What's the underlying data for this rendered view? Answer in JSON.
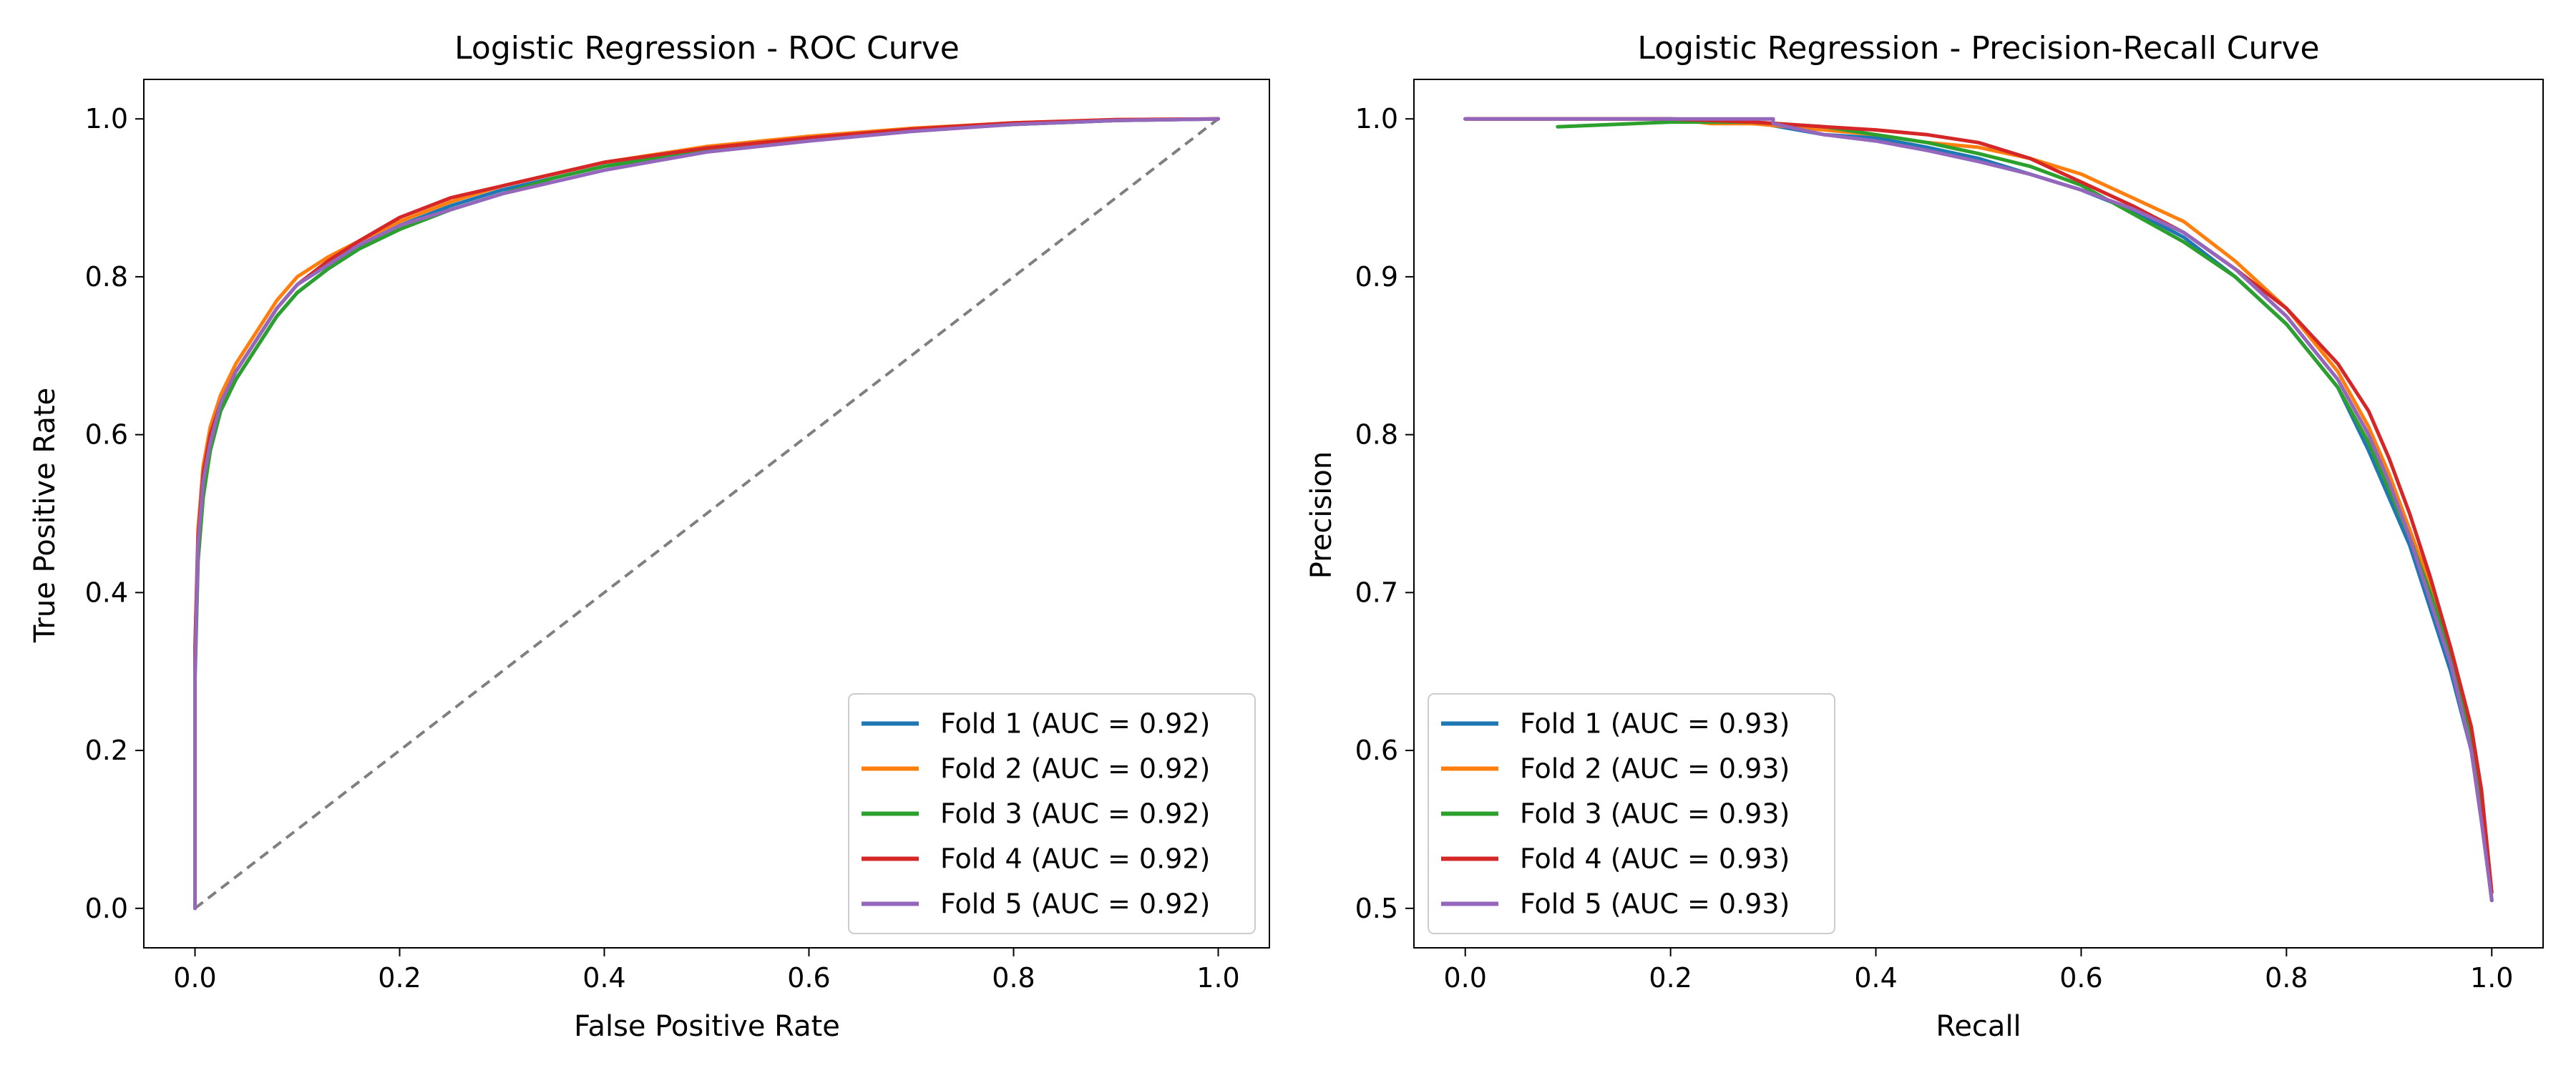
{
  "chart_data": [
    {
      "type": "line",
      "title": "Logistic Regression - ROC Curve",
      "xlabel": "False Positive Rate",
      "ylabel": "True Positive Rate",
      "xlim": [
        -0.05,
        1.05
      ],
      "ylim": [
        -0.05,
        1.05
      ],
      "xticks": [
        0.0,
        0.2,
        0.4,
        0.6,
        0.8,
        1.0
      ],
      "yticks": [
        0.0,
        0.2,
        0.4,
        0.6,
        0.8,
        1.0
      ],
      "xtick_labels": [
        "0.0",
        "0.2",
        "0.4",
        "0.6",
        "0.8",
        "1.0"
      ],
      "ytick_labels": [
        "0.0",
        "0.2",
        "0.4",
        "0.6",
        "0.8",
        "1.0"
      ],
      "legend_position": "lower-right",
      "grid": false,
      "reference_line": {
        "x": [
          0,
          1
        ],
        "y": [
          0,
          1
        ],
        "style": "dashed",
        "color": "#7f7f7f"
      },
      "series": [
        {
          "name": "Fold 1 (AUC = 0.92)",
          "color": "#1f77b4",
          "x": [
            0,
            0,
            0.003,
            0.008,
            0.015,
            0.025,
            0.04,
            0.06,
            0.08,
            0.1,
            0.13,
            0.16,
            0.2,
            0.25,
            0.3,
            0.35,
            0.4,
            0.5,
            0.6,
            0.7,
            0.8,
            0.9,
            1.0
          ],
          "y": [
            0,
            0.3,
            0.45,
            0.53,
            0.58,
            0.63,
            0.67,
            0.71,
            0.75,
            0.78,
            0.81,
            0.835,
            0.865,
            0.89,
            0.91,
            0.925,
            0.94,
            0.96,
            0.975,
            0.985,
            0.993,
            0.998,
            1.0
          ]
        },
        {
          "name": "Fold 2 (AUC = 0.92)",
          "color": "#ff7f0e",
          "x": [
            0,
            0,
            0.003,
            0.008,
            0.015,
            0.025,
            0.04,
            0.06,
            0.08,
            0.1,
            0.13,
            0.16,
            0.2,
            0.25,
            0.3,
            0.35,
            0.4,
            0.5,
            0.6,
            0.7,
            0.8,
            0.9,
            1.0
          ],
          "y": [
            0,
            0.32,
            0.48,
            0.56,
            0.61,
            0.65,
            0.69,
            0.73,
            0.77,
            0.8,
            0.825,
            0.845,
            0.87,
            0.895,
            0.915,
            0.93,
            0.945,
            0.965,
            0.978,
            0.988,
            0.995,
            0.999,
            1.0
          ]
        },
        {
          "name": "Fold 3 (AUC = 0.92)",
          "color": "#2ca02c",
          "x": [
            0,
            0,
            0.003,
            0.008,
            0.015,
            0.025,
            0.04,
            0.06,
            0.08,
            0.1,
            0.13,
            0.16,
            0.2,
            0.25,
            0.3,
            0.35,
            0.4,
            0.5,
            0.6,
            0.7,
            0.8,
            0.9,
            1.0
          ],
          "y": [
            0,
            0.29,
            0.44,
            0.52,
            0.58,
            0.63,
            0.67,
            0.71,
            0.75,
            0.78,
            0.81,
            0.835,
            0.86,
            0.885,
            0.905,
            0.925,
            0.94,
            0.96,
            0.975,
            0.985,
            0.993,
            0.998,
            1.0
          ]
        },
        {
          "name": "Fold 4 (AUC = 0.92)",
          "color": "#d62728",
          "x": [
            0,
            0,
            0.003,
            0.008,
            0.015,
            0.025,
            0.04,
            0.06,
            0.08,
            0.1,
            0.13,
            0.16,
            0.2,
            0.25,
            0.3,
            0.35,
            0.4,
            0.5,
            0.6,
            0.7,
            0.8,
            0.9,
            1.0
          ],
          "y": [
            0,
            0.33,
            0.47,
            0.55,
            0.6,
            0.64,
            0.68,
            0.72,
            0.76,
            0.79,
            0.82,
            0.845,
            0.875,
            0.9,
            0.915,
            0.93,
            0.945,
            0.963,
            0.976,
            0.987,
            0.995,
            0.999,
            1.0
          ]
        },
        {
          "name": "Fold 5 (AUC = 0.92)",
          "color": "#9467bd",
          "x": [
            0,
            0,
            0.003,
            0.008,
            0.015,
            0.025,
            0.04,
            0.06,
            0.08,
            0.1,
            0.13,
            0.16,
            0.2,
            0.25,
            0.3,
            0.35,
            0.4,
            0.5,
            0.6,
            0.7,
            0.8,
            0.9,
            1.0
          ],
          "y": [
            0,
            0.3,
            0.46,
            0.54,
            0.59,
            0.64,
            0.68,
            0.72,
            0.76,
            0.79,
            0.815,
            0.84,
            0.865,
            0.885,
            0.905,
            0.92,
            0.935,
            0.958,
            0.972,
            0.984,
            0.993,
            0.998,
            1.0
          ]
        }
      ]
    },
    {
      "type": "line",
      "title": "Logistic Regression - Precision-Recall Curve",
      "xlabel": "Recall",
      "ylabel": "Precision",
      "xlim": [
        -0.05,
        1.05
      ],
      "ylim": [
        0.475,
        1.025
      ],
      "xticks": [
        0.0,
        0.2,
        0.4,
        0.6,
        0.8,
        1.0
      ],
      "yticks": [
        0.5,
        0.6,
        0.7,
        0.8,
        0.9,
        1.0
      ],
      "xtick_labels": [
        "0.0",
        "0.2",
        "0.4",
        "0.6",
        "0.8",
        "1.0"
      ],
      "ytick_labels": [
        "0.5",
        "0.6",
        "0.7",
        "0.8",
        "0.9",
        "1.0"
      ],
      "legend_position": "lower-left",
      "grid": false,
      "series": [
        {
          "name": "Fold 1 (AUC = 0.93)",
          "color": "#1f77b4",
          "x": [
            0,
            0.2,
            0.28,
            0.35,
            0.4,
            0.45,
            0.5,
            0.55,
            0.6,
            0.65,
            0.7,
            0.75,
            0.8,
            0.85,
            0.88,
            0.9,
            0.92,
            0.94,
            0.96,
            0.98,
            0.99,
            1.0
          ],
          "y": [
            1.0,
            1.0,
            0.998,
            0.99,
            0.988,
            0.982,
            0.975,
            0.965,
            0.955,
            0.942,
            0.925,
            0.9,
            0.87,
            0.83,
            0.79,
            0.76,
            0.73,
            0.69,
            0.65,
            0.6,
            0.56,
            0.505
          ]
        },
        {
          "name": "Fold 2 (AUC = 0.93)",
          "color": "#ff7f0e",
          "x": [
            0,
            0.2,
            0.24,
            0.28,
            0.35,
            0.4,
            0.45,
            0.5,
            0.55,
            0.6,
            0.65,
            0.7,
            0.75,
            0.8,
            0.85,
            0.88,
            0.9,
            0.92,
            0.94,
            0.96,
            0.98,
            0.99,
            1.0
          ],
          "y": [
            1.0,
            1.0,
            0.997,
            0.997,
            0.993,
            0.99,
            0.985,
            0.982,
            0.975,
            0.965,
            0.95,
            0.935,
            0.91,
            0.88,
            0.84,
            0.805,
            0.775,
            0.74,
            0.705,
            0.665,
            0.615,
            0.57,
            0.505
          ]
        },
        {
          "name": "Fold 3 (AUC = 0.93)",
          "color": "#2ca02c",
          "x": [
            0.09,
            0.2,
            0.28,
            0.35,
            0.4,
            0.45,
            0.5,
            0.55,
            0.6,
            0.65,
            0.7,
            0.75,
            0.8,
            0.85,
            0.88,
            0.9,
            0.92,
            0.94,
            0.96,
            0.98,
            0.99,
            1.0
          ],
          "y": [
            0.995,
            0.998,
            0.998,
            0.995,
            0.99,
            0.985,
            0.978,
            0.97,
            0.958,
            0.94,
            0.922,
            0.9,
            0.87,
            0.83,
            0.795,
            0.765,
            0.735,
            0.7,
            0.66,
            0.61,
            0.565,
            0.505
          ]
        },
        {
          "name": "Fold 4 (AUC = 0.93)",
          "color": "#d62728",
          "x": [
            0,
            0.2,
            0.28,
            0.35,
            0.4,
            0.45,
            0.5,
            0.55,
            0.6,
            0.65,
            0.7,
            0.75,
            0.8,
            0.85,
            0.88,
            0.9,
            0.92,
            0.94,
            0.96,
            0.98,
            0.99,
            1.0
          ],
          "y": [
            1.0,
            1.0,
            0.998,
            0.995,
            0.993,
            0.99,
            0.985,
            0.975,
            0.96,
            0.945,
            0.928,
            0.905,
            0.88,
            0.845,
            0.815,
            0.785,
            0.75,
            0.71,
            0.665,
            0.615,
            0.575,
            0.51
          ]
        },
        {
          "name": "Fold 5 (AUC = 0.93)",
          "color": "#9467bd",
          "x": [
            0,
            0.3,
            0.3,
            0.35,
            0.4,
            0.45,
            0.5,
            0.55,
            0.6,
            0.65,
            0.7,
            0.75,
            0.8,
            0.85,
            0.88,
            0.9,
            0.92,
            0.94,
            0.96,
            0.98,
            0.99,
            1.0
          ],
          "y": [
            1.0,
            1.0,
            0.997,
            0.99,
            0.986,
            0.98,
            0.973,
            0.965,
            0.955,
            0.943,
            0.928,
            0.905,
            0.875,
            0.835,
            0.8,
            0.77,
            0.735,
            0.695,
            0.655,
            0.6,
            0.555,
            0.505
          ]
        }
      ]
    }
  ]
}
